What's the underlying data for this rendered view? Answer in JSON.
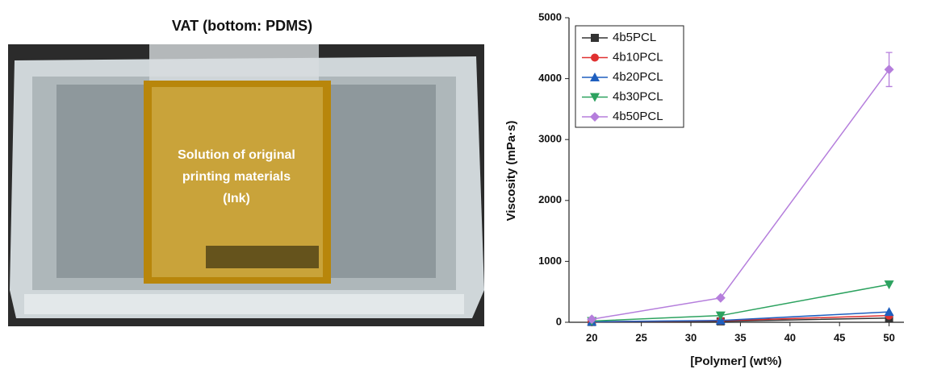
{
  "photo": {
    "title": "VAT (bottom: PDMS)",
    "label_lines": [
      "Solution of original",
      "printing materials",
      "(Ink)"
    ]
  },
  "chart_data": {
    "type": "line",
    "x_label": "[Polymer] (wt%)",
    "y_label": "Viscosity (mPa·s)",
    "x": [
      20,
      33,
      50
    ],
    "xlim": [
      17.7,
      51.5
    ],
    "xticks": [
      20,
      25,
      30,
      35,
      40,
      45,
      50
    ],
    "ylim": [
      0,
      5000
    ],
    "yticks": [
      0,
      1000,
      2000,
      3000,
      4000,
      5000
    ],
    "legend": "top-left",
    "series": [
      {
        "name": "4b5PCL",
        "color": "#333333",
        "marker": "square",
        "values": [
          5,
          15,
          70
        ]
      },
      {
        "name": "4b10PCL",
        "color": "#e03030",
        "marker": "circle",
        "values": [
          8,
          25,
          110
        ]
      },
      {
        "name": "4b20PCL",
        "color": "#1f5fbf",
        "marker": "triangle-up",
        "values": [
          10,
          30,
          170
        ]
      },
      {
        "name": "4b30PCL",
        "color": "#2ca25f",
        "marker": "triangle-down",
        "values": [
          20,
          110,
          620
        ]
      },
      {
        "name": "4b50PCL",
        "color": "#b57edc",
        "marker": "diamond",
        "values": [
          50,
          400,
          4150
        ],
        "errors": [
          null,
          null,
          280
        ]
      }
    ]
  }
}
